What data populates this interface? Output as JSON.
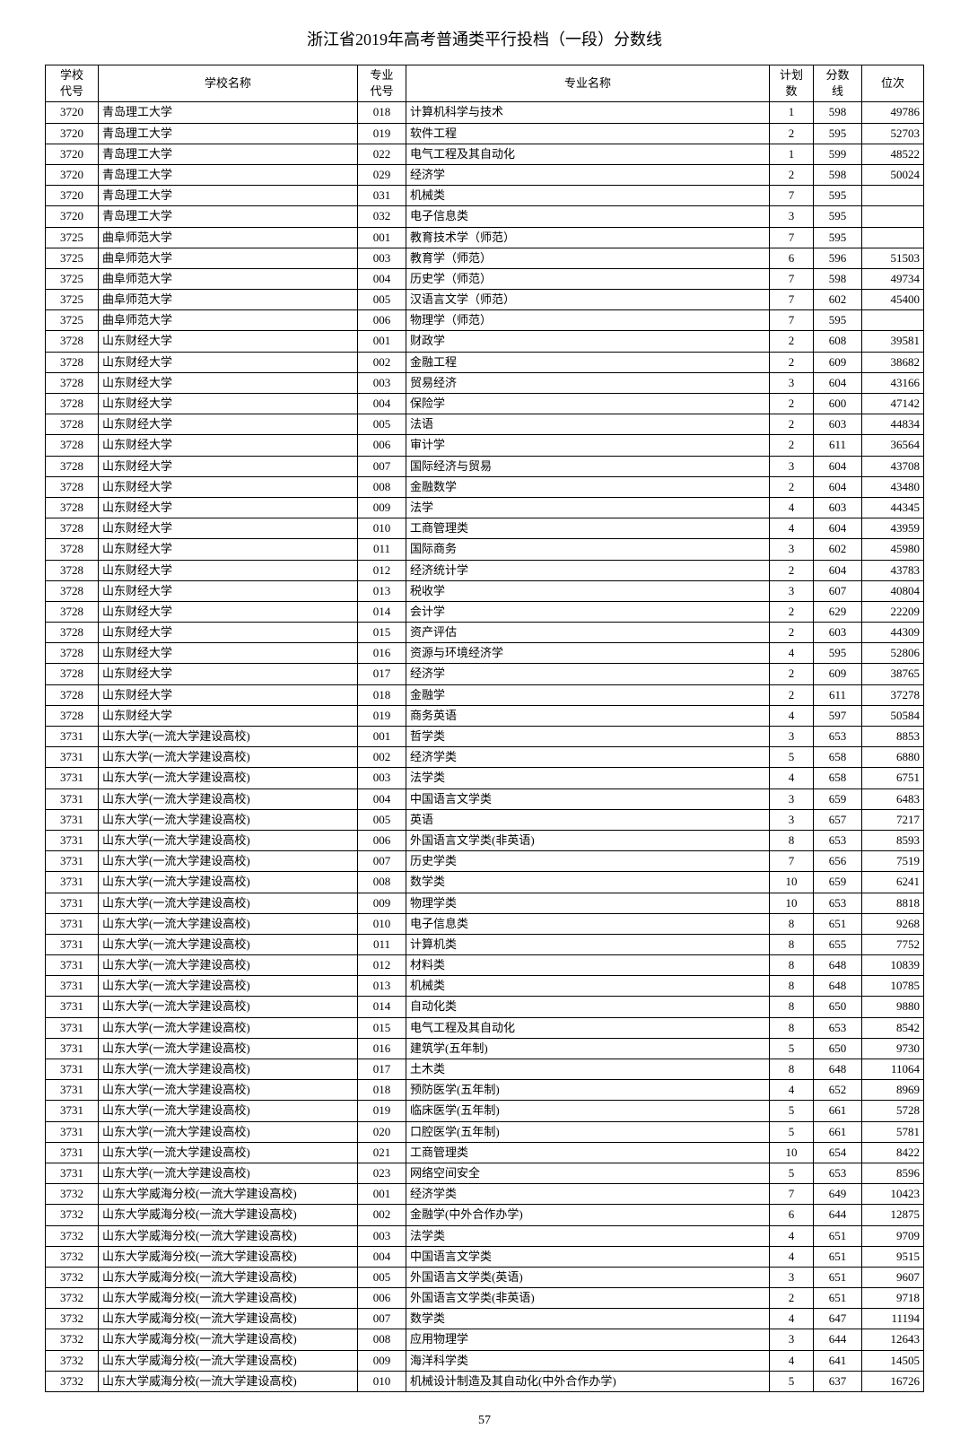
{
  "title": "浙江省2019年高考普通类平行投档（一段）分数线",
  "page_number": "57",
  "headers": {
    "school_code": "学校\n代号",
    "school_name": "学校名称",
    "major_code": "专业\n代号",
    "major_name": "专业名称",
    "plan": "计划\n数",
    "score": "分数\n线",
    "rank": "位次"
  },
  "rows": [
    [
      "3720",
      "青岛理工大学",
      "018",
      "计算机科学与技术",
      "1",
      "598",
      "49786"
    ],
    [
      "3720",
      "青岛理工大学",
      "019",
      "软件工程",
      "2",
      "595",
      "52703"
    ],
    [
      "3720",
      "青岛理工大学",
      "022",
      "电气工程及其自动化",
      "1",
      "599",
      "48522"
    ],
    [
      "3720",
      "青岛理工大学",
      "029",
      "经济学",
      "2",
      "598",
      "50024"
    ],
    [
      "3720",
      "青岛理工大学",
      "031",
      "机械类",
      "7",
      "595",
      ""
    ],
    [
      "3720",
      "青岛理工大学",
      "032",
      "电子信息类",
      "3",
      "595",
      ""
    ],
    [
      "3725",
      "曲阜师范大学",
      "001",
      "教育技术学（师范）",
      "7",
      "595",
      ""
    ],
    [
      "3725",
      "曲阜师范大学",
      "003",
      "教育学（师范）",
      "6",
      "596",
      "51503"
    ],
    [
      "3725",
      "曲阜师范大学",
      "004",
      "历史学（师范）",
      "7",
      "598",
      "49734"
    ],
    [
      "3725",
      "曲阜师范大学",
      "005",
      "汉语言文学（师范）",
      "7",
      "602",
      "45400"
    ],
    [
      "3725",
      "曲阜师范大学",
      "006",
      "物理学（师范）",
      "7",
      "595",
      ""
    ],
    [
      "3728",
      "山东财经大学",
      "001",
      "财政学",
      "2",
      "608",
      "39581"
    ],
    [
      "3728",
      "山东财经大学",
      "002",
      "金融工程",
      "2",
      "609",
      "38682"
    ],
    [
      "3728",
      "山东财经大学",
      "003",
      "贸易经济",
      "3",
      "604",
      "43166"
    ],
    [
      "3728",
      "山东财经大学",
      "004",
      "保险学",
      "2",
      "600",
      "47142"
    ],
    [
      "3728",
      "山东财经大学",
      "005",
      "法语",
      "2",
      "603",
      "44834"
    ],
    [
      "3728",
      "山东财经大学",
      "006",
      "审计学",
      "2",
      "611",
      "36564"
    ],
    [
      "3728",
      "山东财经大学",
      "007",
      "国际经济与贸易",
      "3",
      "604",
      "43708"
    ],
    [
      "3728",
      "山东财经大学",
      "008",
      "金融数学",
      "2",
      "604",
      "43480"
    ],
    [
      "3728",
      "山东财经大学",
      "009",
      "法学",
      "4",
      "603",
      "44345"
    ],
    [
      "3728",
      "山东财经大学",
      "010",
      "工商管理类",
      "4",
      "604",
      "43959"
    ],
    [
      "3728",
      "山东财经大学",
      "011",
      "国际商务",
      "3",
      "602",
      "45980"
    ],
    [
      "3728",
      "山东财经大学",
      "012",
      "经济统计学",
      "2",
      "604",
      "43783"
    ],
    [
      "3728",
      "山东财经大学",
      "013",
      "税收学",
      "3",
      "607",
      "40804"
    ],
    [
      "3728",
      "山东财经大学",
      "014",
      "会计学",
      "2",
      "629",
      "22209"
    ],
    [
      "3728",
      "山东财经大学",
      "015",
      "资产评估",
      "2",
      "603",
      "44309"
    ],
    [
      "3728",
      "山东财经大学",
      "016",
      "资源与环境经济学",
      "4",
      "595",
      "52806"
    ],
    [
      "3728",
      "山东财经大学",
      "017",
      "经济学",
      "2",
      "609",
      "38765"
    ],
    [
      "3728",
      "山东财经大学",
      "018",
      "金融学",
      "2",
      "611",
      "37278"
    ],
    [
      "3728",
      "山东财经大学",
      "019",
      "商务英语",
      "4",
      "597",
      "50584"
    ],
    [
      "3731",
      "山东大学(一流大学建设高校)",
      "001",
      "哲学类",
      "3",
      "653",
      "8853"
    ],
    [
      "3731",
      "山东大学(一流大学建设高校)",
      "002",
      "经济学类",
      "5",
      "658",
      "6880"
    ],
    [
      "3731",
      "山东大学(一流大学建设高校)",
      "003",
      "法学类",
      "4",
      "658",
      "6751"
    ],
    [
      "3731",
      "山东大学(一流大学建设高校)",
      "004",
      "中国语言文学类",
      "3",
      "659",
      "6483"
    ],
    [
      "3731",
      "山东大学(一流大学建设高校)",
      "005",
      "英语",
      "3",
      "657",
      "7217"
    ],
    [
      "3731",
      "山东大学(一流大学建设高校)",
      "006",
      "外国语言文学类(非英语)",
      "8",
      "653",
      "8593"
    ],
    [
      "3731",
      "山东大学(一流大学建设高校)",
      "007",
      "历史学类",
      "7",
      "656",
      "7519"
    ],
    [
      "3731",
      "山东大学(一流大学建设高校)",
      "008",
      "数学类",
      "10",
      "659",
      "6241"
    ],
    [
      "3731",
      "山东大学(一流大学建设高校)",
      "009",
      "物理学类",
      "10",
      "653",
      "8818"
    ],
    [
      "3731",
      "山东大学(一流大学建设高校)",
      "010",
      "电子信息类",
      "8",
      "651",
      "9268"
    ],
    [
      "3731",
      "山东大学(一流大学建设高校)",
      "011",
      "计算机类",
      "8",
      "655",
      "7752"
    ],
    [
      "3731",
      "山东大学(一流大学建设高校)",
      "012",
      "材料类",
      "8",
      "648",
      "10839"
    ],
    [
      "3731",
      "山东大学(一流大学建设高校)",
      "013",
      "机械类",
      "8",
      "648",
      "10785"
    ],
    [
      "3731",
      "山东大学(一流大学建设高校)",
      "014",
      "自动化类",
      "8",
      "650",
      "9880"
    ],
    [
      "3731",
      "山东大学(一流大学建设高校)",
      "015",
      "电气工程及其自动化",
      "8",
      "653",
      "8542"
    ],
    [
      "3731",
      "山东大学(一流大学建设高校)",
      "016",
      "建筑学(五年制)",
      "5",
      "650",
      "9730"
    ],
    [
      "3731",
      "山东大学(一流大学建设高校)",
      "017",
      "土木类",
      "8",
      "648",
      "11064"
    ],
    [
      "3731",
      "山东大学(一流大学建设高校)",
      "018",
      "预防医学(五年制)",
      "4",
      "652",
      "8969"
    ],
    [
      "3731",
      "山东大学(一流大学建设高校)",
      "019",
      "临床医学(五年制)",
      "5",
      "661",
      "5728"
    ],
    [
      "3731",
      "山东大学(一流大学建设高校)",
      "020",
      "口腔医学(五年制)",
      "5",
      "661",
      "5781"
    ],
    [
      "3731",
      "山东大学(一流大学建设高校)",
      "021",
      "工商管理类",
      "10",
      "654",
      "8422"
    ],
    [
      "3731",
      "山东大学(一流大学建设高校)",
      "023",
      "网络空间安全",
      "5",
      "653",
      "8596"
    ],
    [
      "3732",
      "山东大学威海分校(一流大学建设高校)",
      "001",
      "经济学类",
      "7",
      "649",
      "10423"
    ],
    [
      "3732",
      "山东大学威海分校(一流大学建设高校)",
      "002",
      "金融学(中外合作办学)",
      "6",
      "644",
      "12875"
    ],
    [
      "3732",
      "山东大学威海分校(一流大学建设高校)",
      "003",
      "法学类",
      "4",
      "651",
      "9709"
    ],
    [
      "3732",
      "山东大学威海分校(一流大学建设高校)",
      "004",
      "中国语言文学类",
      "4",
      "651",
      "9515"
    ],
    [
      "3732",
      "山东大学威海分校(一流大学建设高校)",
      "005",
      "外国语言文学类(英语)",
      "3",
      "651",
      "9607"
    ],
    [
      "3732",
      "山东大学威海分校(一流大学建设高校)",
      "006",
      "外国语言文学类(非英语)",
      "2",
      "651",
      "9718"
    ],
    [
      "3732",
      "山东大学威海分校(一流大学建设高校)",
      "007",
      "数学类",
      "4",
      "647",
      "11194"
    ],
    [
      "3732",
      "山东大学威海分校(一流大学建设高校)",
      "008",
      "应用物理学",
      "3",
      "644",
      "12643"
    ],
    [
      "3732",
      "山东大学威海分校(一流大学建设高校)",
      "009",
      "海洋科学类",
      "4",
      "641",
      "14505"
    ],
    [
      "3732",
      "山东大学威海分校(一流大学建设高校)",
      "010",
      "机械设计制造及其自动化(中外合作办学)",
      "5",
      "637",
      "16726"
    ]
  ]
}
